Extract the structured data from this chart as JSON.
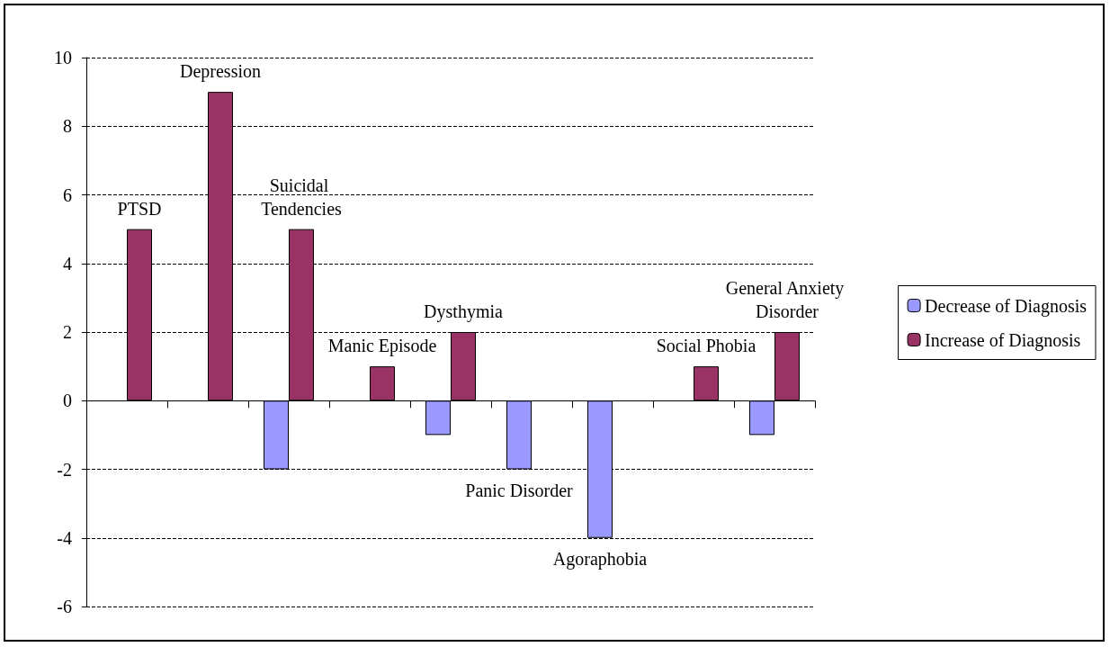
{
  "chart_data": {
    "type": "bar",
    "categories": [
      "PTSD",
      "Depression",
      "Suicidal Tendencies",
      "Manic Episode",
      "Dysthymia",
      "Panic Disorder",
      "Agoraphobia",
      "Social Phobia",
      "General Anxiety Disorder"
    ],
    "series": [
      {
        "name": "Decrease of Diagnosis",
        "color": "#9999ff",
        "values": [
          null,
          null,
          -2,
          null,
          -1,
          -2,
          -4,
          null,
          -1
        ]
      },
      {
        "name": "Increase of Diagnosis",
        "color": "#993366",
        "values": [
          5,
          9,
          5,
          1,
          2,
          null,
          null,
          1,
          2
        ]
      }
    ],
    "ylim": [
      -6,
      10
    ],
    "yticks": [
      -6,
      -4,
      -2,
      0,
      2,
      4,
      6,
      8,
      10
    ],
    "grid": "y",
    "line_style": "dashed",
    "legend": "right"
  }
}
